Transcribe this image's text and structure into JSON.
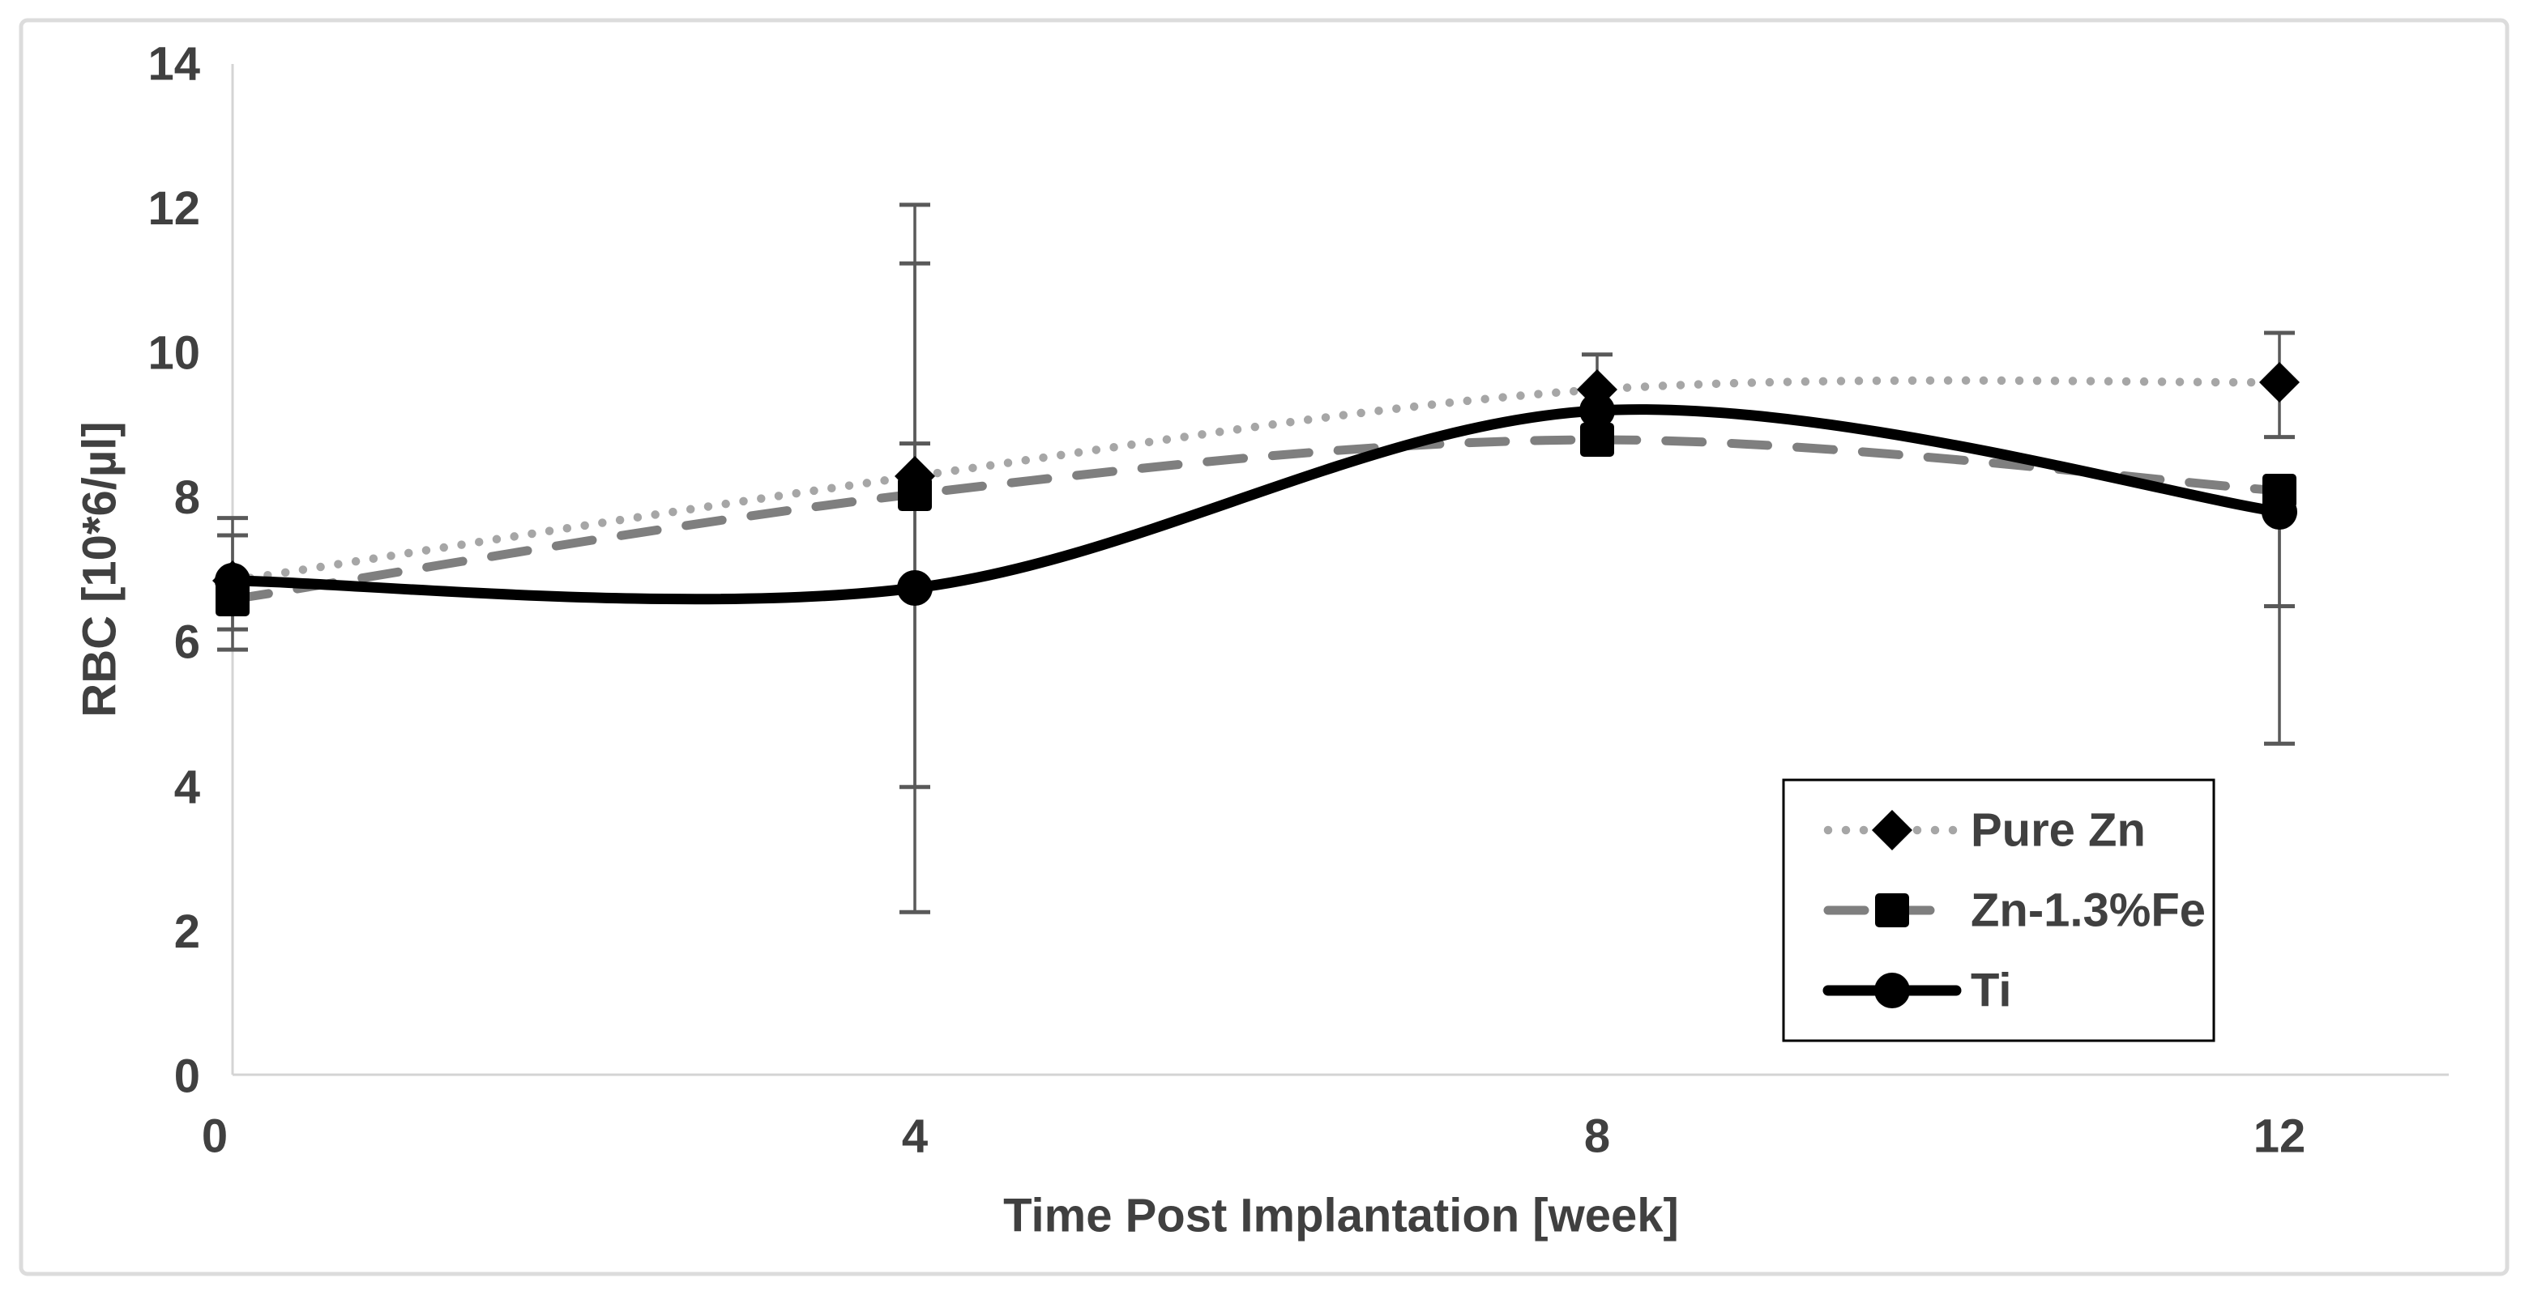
{
  "figure": {
    "background": "#ffffff",
    "border_color": "#dcdcdc",
    "text_color": "#404040",
    "axis_line_color": "#d4d4d4",
    "error_bar_color": "#595959"
  },
  "chart_data": {
    "type": "line",
    "title": "",
    "xlabel": "Time Post Implantation [week]",
    "ylabel": "RBC [10*6/µl]",
    "x": [
      0,
      4,
      8,
      12
    ],
    "x_ticks": [
      "0",
      "4",
      "8",
      "12"
    ],
    "y_ticks": [
      "0",
      "2",
      "4",
      "6",
      "8",
      "10",
      "12",
      "14"
    ],
    "y_tick_values": [
      0,
      2,
      4,
      6,
      8,
      10,
      12,
      14
    ],
    "xlim": [
      0,
      13
    ],
    "ylim": [
      0,
      14
    ],
    "grid": false,
    "legend_position": "inside-right",
    "series": [
      {
        "name": "Pure Zn",
        "marker": "diamond",
        "line_style": "dotted",
        "line_color": "#a6a6a6",
        "marker_color": "#000000",
        "values": [
          6.85,
          8.3,
          9.5,
          9.6
        ],
        "error_bars": [
          {
            "x": 0,
            "low": 6.85,
            "high": 6.85
          },
          {
            "x": 4,
            "low": 7.85,
            "high": 8.75
          },
          {
            "x": 8,
            "low": 8.95,
            "high": 9.98
          },
          {
            "x": 12,
            "low": 8.84,
            "high": 10.28
          }
        ]
      },
      {
        "name": "Zn-1.3%Fe",
        "marker": "square",
        "line_style": "dashed",
        "line_color": "#7f7f7f",
        "marker_color": "#000000",
        "values": [
          6.6,
          8.05,
          8.8,
          8.1
        ],
        "error_bars": [
          {
            "x": 0,
            "low": 6.18,
            "high": 7.48
          },
          {
            "x": 4,
            "low": 4.0,
            "high": 12.05
          },
          {
            "x": 8,
            "low": 8.8,
            "high": 8.8
          },
          {
            "x": 12,
            "low": 6.5,
            "high": 8.1
          }
        ]
      },
      {
        "name": "Ti",
        "marker": "circle",
        "line_style": "solid",
        "line_color": "#000000",
        "marker_color": "#000000",
        "values": [
          6.85,
          6.75,
          9.2,
          7.8
        ],
        "error_bars": [
          {
            "x": 0,
            "low": 5.9,
            "high": 7.72
          },
          {
            "x": 4,
            "low": 2.27,
            "high": 11.24
          },
          {
            "x": 8,
            "low": 9.2,
            "high": 9.2
          },
          {
            "x": 12,
            "low": 4.6,
            "high": 7.8
          }
        ]
      }
    ]
  }
}
